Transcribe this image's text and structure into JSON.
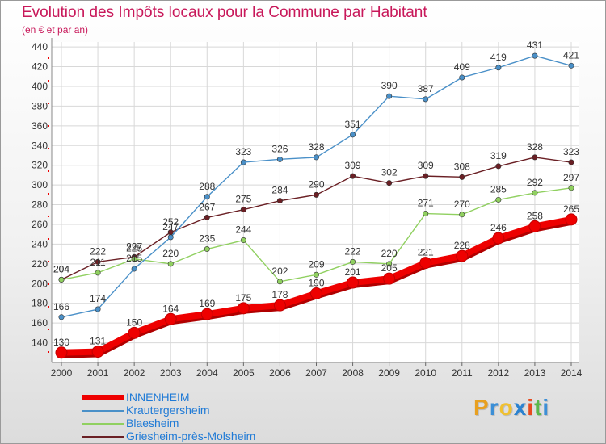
{
  "title": "Evolution des Impôts locaux pour la Commune par Habitant",
  "subtitle": "(en € et par an)",
  "logo": {
    "letters": [
      "P",
      "r",
      "o",
      "x",
      "i",
      "t",
      "i"
    ],
    "colors": [
      "#e8a020",
      "#3c8fd6",
      "#f0c030",
      "#2b82d0",
      "#e84a1f",
      "#5cb84a",
      "#3c8fd6"
    ]
  },
  "chart_data": {
    "type": "line",
    "x": [
      "2000",
      "2001",
      "2002",
      "2003",
      "2004",
      "2005",
      "2006",
      "2007",
      "2008",
      "2009",
      "2010",
      "2011",
      "2012",
      "2013",
      "2014"
    ],
    "ylim": [
      120,
      445
    ],
    "yticks": [
      140,
      160,
      180,
      200,
      220,
      240,
      260,
      280,
      300,
      320,
      340,
      360,
      380,
      400,
      420,
      440
    ],
    "grid": true,
    "legend_position": "bottom-left",
    "series": [
      {
        "name": "INNENHEIM",
        "color": "#ee0000",
        "values": [
          130,
          131,
          150,
          164,
          169,
          175,
          178,
          190,
          201,
          205,
          221,
          228,
          246,
          258,
          265
        ]
      },
      {
        "name": "Krautergersheim",
        "color": "#4a90c8",
        "values": [
          166,
          174,
          215,
          247,
          288,
          323,
          326,
          328,
          351,
          390,
          387,
          409,
          419,
          431,
          421
        ]
      },
      {
        "name": "Blaesheim",
        "color": "#90d060",
        "values": [
          204,
          211,
          225,
          220,
          235,
          244,
          202,
          209,
          222,
          220,
          271,
          270,
          285,
          292,
          297
        ]
      },
      {
        "name": "Griesheim-près-Molsheim",
        "color": "#6a1f24",
        "values": [
          204,
          222,
          227,
          252,
          267,
          275,
          284,
          290,
          309,
          302,
          309,
          308,
          319,
          328,
          323
        ]
      }
    ]
  }
}
